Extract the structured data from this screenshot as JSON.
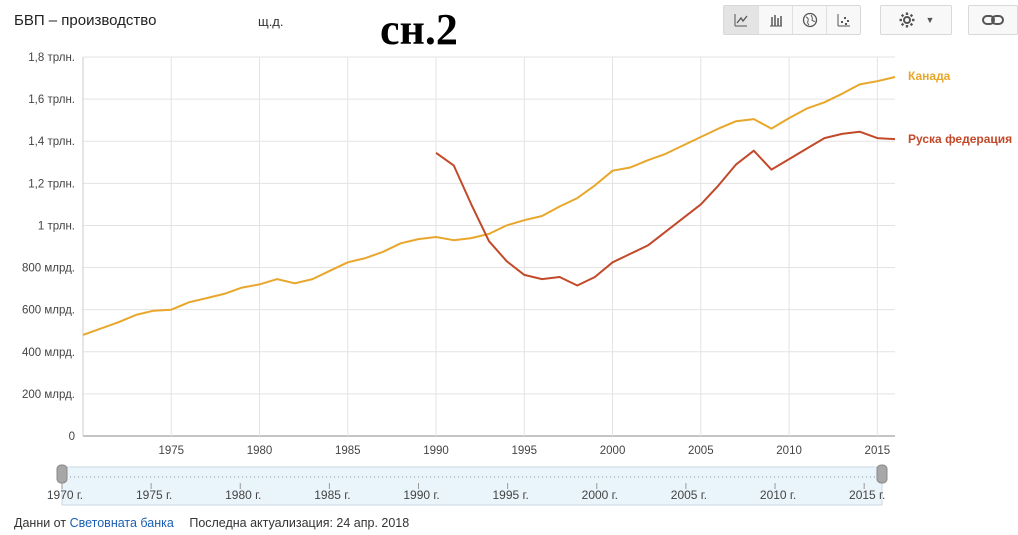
{
  "header": {
    "title": "БВП – производство",
    "unit": "щ.д.",
    "overlay_text": "сн.2"
  },
  "toolbar": {
    "views": [
      {
        "icon": "line-chart-icon",
        "glyph": "⟋",
        "active": true
      },
      {
        "icon": "bar-chart-icon",
        "glyph": "▥",
        "active": false
      },
      {
        "icon": "globe-icon",
        "glyph": "◍",
        "active": false
      },
      {
        "icon": "scatter-icon",
        "glyph": "⁙",
        "active": false
      }
    ],
    "settings_icon": "gear-icon",
    "link_icon": "link-icon"
  },
  "footer": {
    "source_prefix": "Данни от",
    "source_link": "Световната банка",
    "updated": "Последна актуализация: 24 апр. 2018"
  },
  "colors": {
    "canada": "#e8a72b",
    "russia": "#c2492a",
    "grid": "#e3e3e3",
    "slider_fill": "#eaf4fb"
  },
  "chart_data": {
    "type": "line",
    "xlim": [
      1970,
      2016
    ],
    "ylim": [
      0,
      1.8
    ],
    "y_ticks": [
      0,
      0.2,
      0.4,
      0.6,
      0.8,
      1.0,
      1.2,
      1.4,
      1.6,
      1.8
    ],
    "y_tick_labels": [
      "0",
      "200 млрд.",
      "400 млрд.",
      "600 млрд.",
      "800 млрд.",
      "1 трлн.",
      "1,2 трлн.",
      "1,4 трлн.",
      "1,6 трлн.",
      "1,8 трлн."
    ],
    "x_ticks": [
      1975,
      1980,
      1985,
      1990,
      1995,
      2000,
      2005,
      2010,
      2015
    ],
    "x_tick_labels": [
      "1975",
      "1980",
      "1985",
      "1990",
      "1995",
      "2000",
      "2005",
      "2010",
      "2015"
    ],
    "slider_labels": [
      "1970 г.",
      "1975 г.",
      "1980 г.",
      "1985 г.",
      "1990 г.",
      "1995 г.",
      "2000 г.",
      "2005 г.",
      "2010 г.",
      "2015 г."
    ],
    "slider_years": [
      1970,
      1975,
      1980,
      1985,
      1990,
      1995,
      2000,
      2005,
      2010,
      2015
    ],
    "grid": true,
    "legend_placement": "right, at line ends",
    "series": [
      {
        "name": "Канада",
        "color_key": "canada",
        "x": [
          1970,
          1971,
          1972,
          1973,
          1974,
          1975,
          1976,
          1977,
          1978,
          1979,
          1980,
          1981,
          1982,
          1983,
          1984,
          1985,
          1986,
          1987,
          1988,
          1989,
          1990,
          1991,
          1992,
          1993,
          1994,
          1995,
          1996,
          1997,
          1998,
          1999,
          2000,
          2001,
          2002,
          2003,
          2004,
          2005,
          2006,
          2007,
          2008,
          2009,
          2010,
          2011,
          2012,
          2013,
          2014,
          2015,
          2016
        ],
        "values": [
          0.48,
          0.51,
          0.54,
          0.575,
          0.595,
          0.6,
          0.635,
          0.655,
          0.675,
          0.705,
          0.72,
          0.745,
          0.725,
          0.745,
          0.785,
          0.825,
          0.845,
          0.875,
          0.915,
          0.935,
          0.945,
          0.93,
          0.94,
          0.96,
          1.0,
          1.025,
          1.045,
          1.09,
          1.13,
          1.19,
          1.26,
          1.275,
          1.31,
          1.34,
          1.38,
          1.42,
          1.46,
          1.495,
          1.505,
          1.46,
          1.51,
          1.555,
          1.585,
          1.625,
          1.67,
          1.685,
          1.705
        ]
      },
      {
        "name": "Руска федерация",
        "color_key": "russia",
        "x": [
          1990,
          1991,
          1992,
          1993,
          1994,
          1995,
          1996,
          1997,
          1998,
          1999,
          2000,
          2001,
          2002,
          2003,
          2004,
          2005,
          2006,
          2007,
          2008,
          2009,
          2010,
          2011,
          2012,
          2013,
          2014,
          2015,
          2016
        ],
        "values": [
          1.345,
          1.285,
          1.1,
          0.925,
          0.83,
          0.765,
          0.745,
          0.755,
          0.715,
          0.755,
          0.825,
          0.865,
          0.905,
          0.97,
          1.035,
          1.1,
          1.19,
          1.29,
          1.355,
          1.265,
          1.315,
          1.365,
          1.415,
          1.435,
          1.445,
          1.415,
          1.41
        ]
      }
    ]
  }
}
